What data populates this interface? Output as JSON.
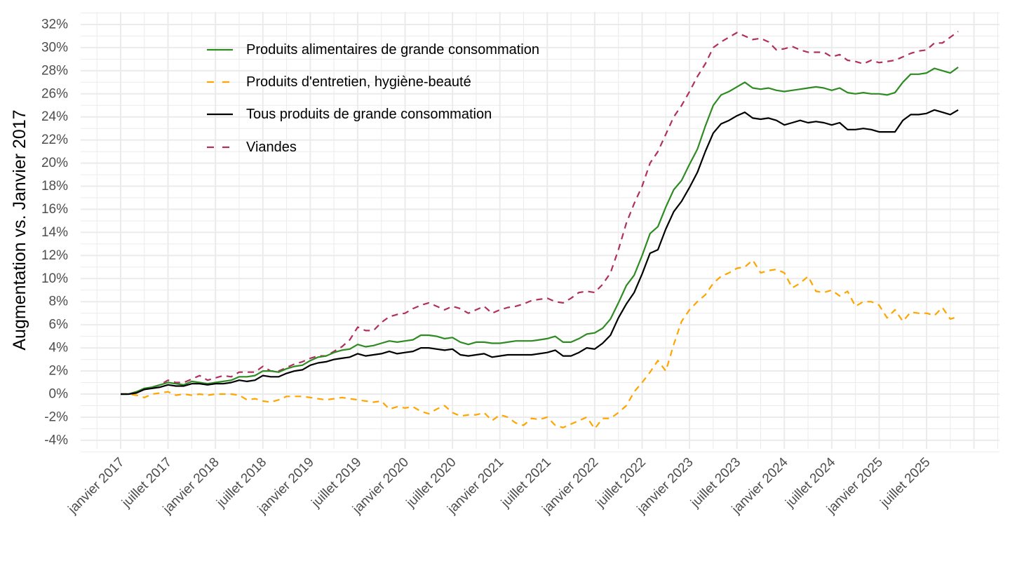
{
  "chart_data": {
    "type": "line",
    "title": "",
    "xlabel": "",
    "ylabel": "Augmentation vs. Janvier 2017",
    "ylim": [
      -4,
      32
    ],
    "y_ticks": [
      -4,
      -2,
      0,
      2,
      4,
      6,
      8,
      10,
      12,
      14,
      16,
      18,
      20,
      22,
      24,
      26,
      28,
      30,
      32
    ],
    "y_tick_labels": [
      "-4%",
      "-2%",
      "0%",
      "2%",
      "4%",
      "6%",
      "8%",
      "10%",
      "12%",
      "14%",
      "16%",
      "18%",
      "20%",
      "22%",
      "24%",
      "26%",
      "28%",
      "30%",
      "32%"
    ],
    "x_start": "2017-01",
    "x_unit": "month",
    "x_ticks_month_index": [
      0,
      6,
      12,
      18,
      24,
      30,
      36,
      42,
      48,
      54,
      60,
      66,
      72,
      78,
      84,
      90,
      96,
      102
    ],
    "x_tick_labels": [
      "janvier 2017",
      "juillet 2017",
      "janvier 2018",
      "juillet 2018",
      "janvier 2019",
      "juillet 2019",
      "janvier 2020",
      "juillet 2020",
      "janvier 2021",
      "juillet 2021",
      "janvier 2022",
      "juillet 2022",
      "janvier 2023",
      "juillet 2023",
      "janvier 2024",
      "juillet 2024",
      "janvier 2025",
      "juillet 2025"
    ],
    "grid": true,
    "legend_position": "top-left-inside",
    "series": [
      {
        "name": "Produits alimentaires de grande consommation",
        "color": "#2e8b22",
        "dash": "solid",
        "values": [
          0.0,
          0.0,
          0.2,
          0.5,
          0.6,
          0.8,
          1.0,
          0.9,
          0.8,
          1.1,
          1.0,
          0.9,
          1.0,
          1.1,
          1.2,
          1.5,
          1.5,
          1.6,
          2.0,
          2.0,
          1.9,
          2.2,
          2.4,
          2.5,
          2.9,
          3.2,
          3.3,
          3.6,
          3.8,
          3.9,
          4.3,
          4.1,
          4.2,
          4.4,
          4.6,
          4.5,
          4.6,
          4.7,
          5.1,
          5.1,
          5.0,
          4.8,
          4.9,
          4.5,
          4.3,
          4.5,
          4.5,
          4.4,
          4.4,
          4.5,
          4.6,
          4.6,
          4.6,
          4.7,
          4.8,
          5.0,
          4.5,
          4.5,
          4.8,
          5.2,
          5.3,
          5.7,
          6.5,
          7.9,
          9.4,
          10.3,
          12.0,
          13.9,
          14.5,
          16.2,
          17.7,
          18.5,
          19.9,
          21.2,
          23.2,
          25.0,
          25.9,
          26.2,
          26.6,
          27.0,
          26.5,
          26.4,
          26.5,
          26.3,
          26.2,
          26.3,
          26.4,
          26.5,
          26.6,
          26.5,
          26.3,
          26.5,
          26.1,
          26.0,
          26.1,
          26.0,
          26.0,
          25.9,
          26.1,
          27.0,
          27.7,
          27.7,
          27.8,
          28.2,
          28.0,
          27.8,
          28.3
        ]
      },
      {
        "name": "Produits d'entretien, hygiène-beauté",
        "color": "#ffa500",
        "dash": "dashed",
        "values": [
          0.0,
          0.0,
          -0.1,
          -0.3,
          0.0,
          0.1,
          0.2,
          -0.1,
          0.0,
          -0.1,
          0.0,
          -0.1,
          0.0,
          0.0,
          0.0,
          -0.1,
          -0.5,
          -0.4,
          -0.6,
          -0.7,
          -0.5,
          -0.2,
          -0.2,
          -0.2,
          -0.3,
          -0.4,
          -0.5,
          -0.4,
          -0.3,
          -0.4,
          -0.5,
          -0.6,
          -0.7,
          -0.6,
          -1.3,
          -1.1,
          -1.2,
          -1.1,
          -1.5,
          -1.7,
          -1.3,
          -1.0,
          -1.6,
          -1.9,
          -1.8,
          -1.8,
          -1.6,
          -2.3,
          -1.8,
          -2.0,
          -2.5,
          -2.7,
          -2.1,
          -2.2,
          -2.0,
          -2.7,
          -2.9,
          -2.6,
          -2.3,
          -2.0,
          -3.0,
          -2.1,
          -2.1,
          -1.6,
          -1.0,
          0.2,
          1.0,
          1.9,
          2.9,
          2.0,
          4.3,
          6.3,
          7.3,
          8.0,
          8.6,
          9.6,
          10.2,
          10.5,
          10.9,
          11.0,
          11.6,
          10.5,
          10.7,
          10.8,
          10.5,
          9.2,
          9.6,
          10.2,
          8.9,
          8.8,
          9.0,
          8.5,
          8.9,
          7.6,
          8.0,
          8.0,
          7.7,
          6.6,
          7.3,
          6.3,
          7.1,
          7.0,
          7.0,
          6.8,
          7.5,
          6.5,
          6.7
        ]
      },
      {
        "name": "Tous produits de grande consommation",
        "color": "#000000",
        "dash": "solid",
        "values": [
          0.0,
          0.0,
          0.1,
          0.4,
          0.5,
          0.6,
          0.8,
          0.7,
          0.7,
          0.9,
          0.9,
          0.8,
          0.9,
          0.9,
          1.0,
          1.2,
          1.1,
          1.2,
          1.6,
          1.5,
          1.5,
          1.8,
          2.0,
          2.1,
          2.5,
          2.7,
          2.8,
          3.0,
          3.1,
          3.2,
          3.5,
          3.3,
          3.4,
          3.5,
          3.7,
          3.5,
          3.6,
          3.7,
          4.0,
          4.0,
          3.9,
          3.8,
          3.9,
          3.4,
          3.3,
          3.4,
          3.5,
          3.2,
          3.3,
          3.4,
          3.4,
          3.4,
          3.4,
          3.5,
          3.6,
          3.8,
          3.3,
          3.3,
          3.6,
          4.0,
          3.9,
          4.4,
          5.1,
          6.6,
          7.8,
          8.8,
          10.4,
          12.2,
          12.5,
          14.3,
          15.8,
          16.7,
          17.9,
          19.2,
          21.0,
          22.6,
          23.4,
          23.7,
          24.1,
          24.4,
          23.9,
          23.8,
          23.9,
          23.7,
          23.3,
          23.5,
          23.7,
          23.5,
          23.6,
          23.5,
          23.3,
          23.5,
          22.9,
          22.9,
          23.0,
          22.9,
          22.7,
          22.7,
          22.7,
          23.7,
          24.2,
          24.2,
          24.3,
          24.6,
          24.4,
          24.2,
          24.6
        ]
      },
      {
        "name": "Viandes",
        "color": "#b03060",
        "dash": "dashed",
        "values": [
          0.0,
          0.0,
          0.2,
          0.4,
          0.6,
          0.8,
          1.2,
          1.0,
          1.0,
          1.3,
          1.6,
          1.2,
          1.4,
          1.6,
          1.5,
          1.9,
          1.9,
          1.9,
          2.4,
          2.0,
          2.0,
          2.3,
          2.6,
          2.8,
          3.1,
          3.3,
          3.3,
          3.7,
          4.1,
          4.7,
          5.8,
          5.5,
          5.5,
          6.2,
          6.7,
          6.9,
          7.0,
          7.4,
          7.7,
          7.9,
          7.6,
          7.3,
          7.6,
          7.4,
          7.0,
          7.3,
          7.6,
          7.0,
          7.3,
          7.5,
          7.6,
          7.8,
          8.1,
          8.2,
          8.3,
          8.0,
          7.9,
          8.3,
          8.8,
          8.9,
          8.8,
          9.5,
          10.5,
          12.5,
          14.8,
          16.5,
          18.0,
          20.0,
          21.0,
          22.5,
          24.0,
          25.0,
          26.2,
          27.5,
          28.6,
          30.0,
          30.5,
          30.9,
          31.3,
          31.0,
          30.7,
          30.8,
          30.5,
          29.8,
          29.9,
          30.1,
          29.8,
          29.6,
          29.6,
          29.6,
          29.2,
          29.4,
          28.9,
          28.8,
          28.6,
          28.9,
          28.7,
          28.8,
          28.9,
          29.2,
          29.5,
          29.7,
          29.8,
          30.4,
          30.4,
          30.9,
          31.4
        ]
      }
    ]
  }
}
